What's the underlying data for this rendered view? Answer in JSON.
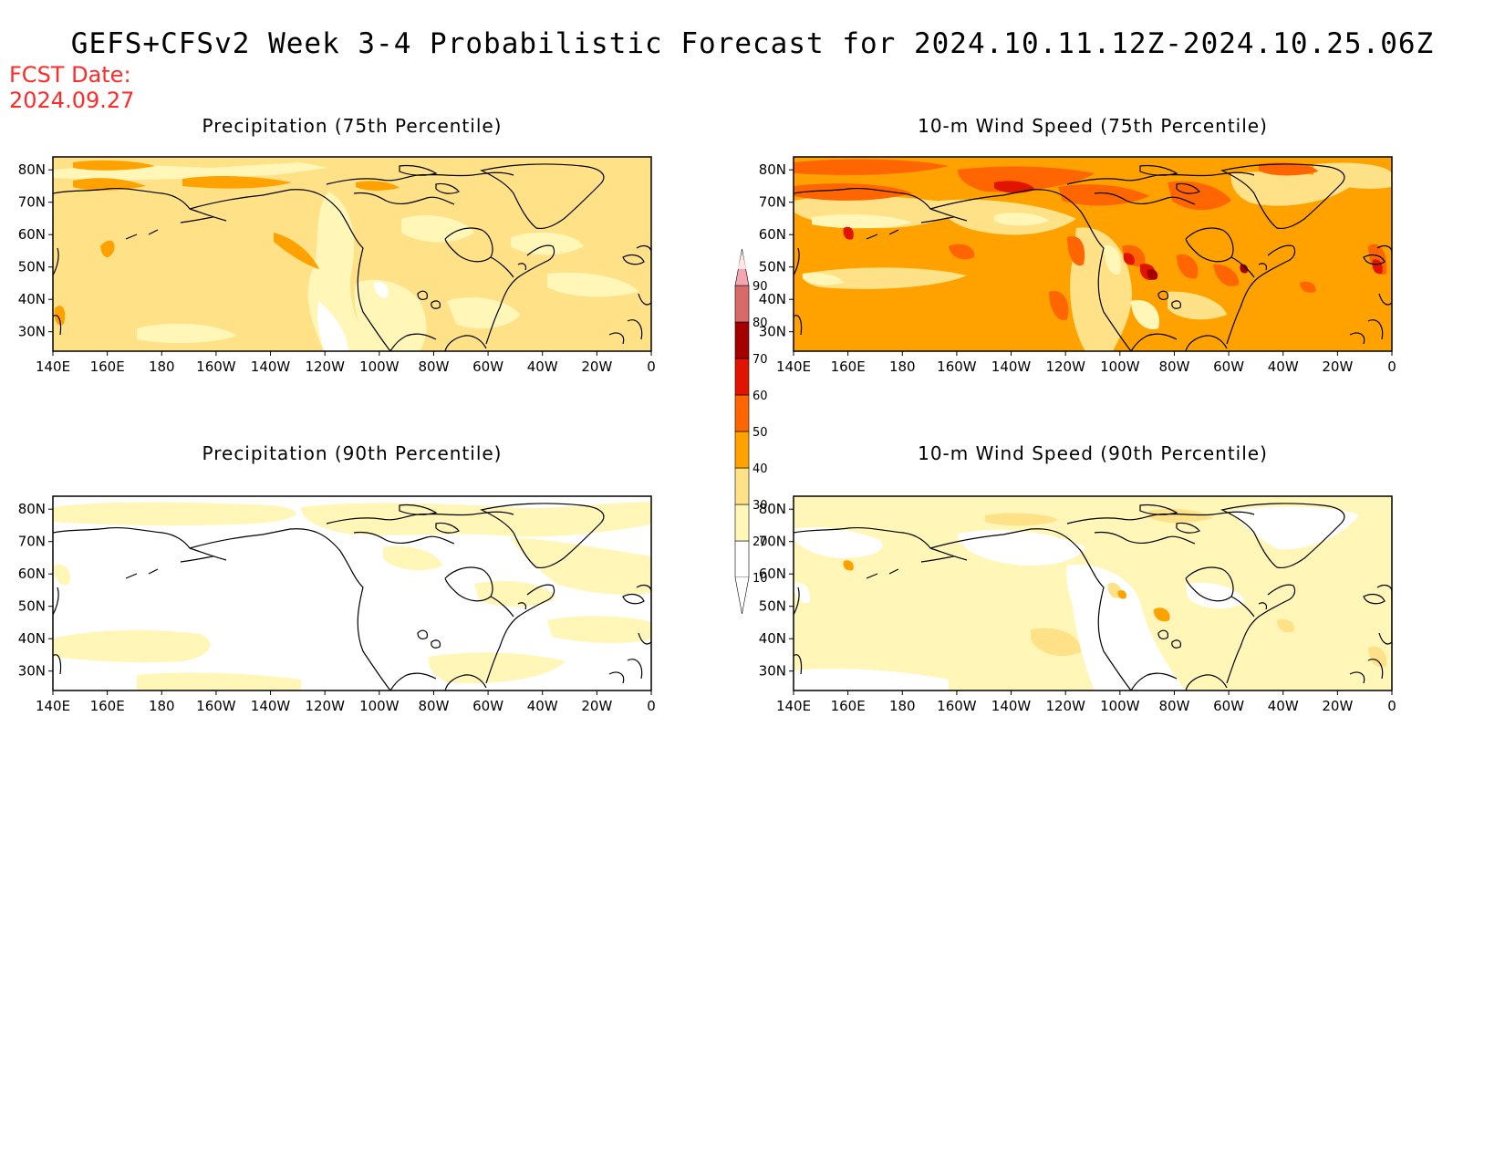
{
  "main_title": "GEFS+CFSv2 Week 3-4 Probabilistic Forecast for 2024.10.11.12Z-2024.10.25.06Z",
  "fcst_date": {
    "label": "FCST Date:",
    "value": "2024.09.27"
  },
  "colors": {
    "c10": "#ffffff",
    "c20": "#fff6b8",
    "c30": "#ffe187",
    "c40": "#ffa200",
    "c50": "#ff6500",
    "c60": "#e01400",
    "c70": "#a50000",
    "c80": "#d96a6a",
    "c90": "#f3a5b0",
    "top": "#ffe6e6",
    "coast": "#000000"
  },
  "colorbar": {
    "ticks": [
      "90",
      "80",
      "70",
      "60",
      "50",
      "40",
      "30",
      "20",
      "10"
    ]
  },
  "lon_ticks": [
    "140E",
    "160E",
    "180",
    "160W",
    "140W",
    "120W",
    "100W",
    "80W",
    "60W",
    "40W",
    "20W",
    "0"
  ],
  "lat_ticks": [
    "80N",
    "70N",
    "60N",
    "50N",
    "40N",
    "30N"
  ],
  "panels": [
    {
      "title": "Precipitation (75th Percentile)",
      "background": "c30"
    },
    {
      "title": "10-m Wind Speed (75th Percentile)",
      "background": "c40"
    },
    {
      "title": "Precipitation (90th Percentile)",
      "background": "c10"
    },
    {
      "title": "10-m Wind Speed (90th Percentile)",
      "background": "c20"
    }
  ]
}
